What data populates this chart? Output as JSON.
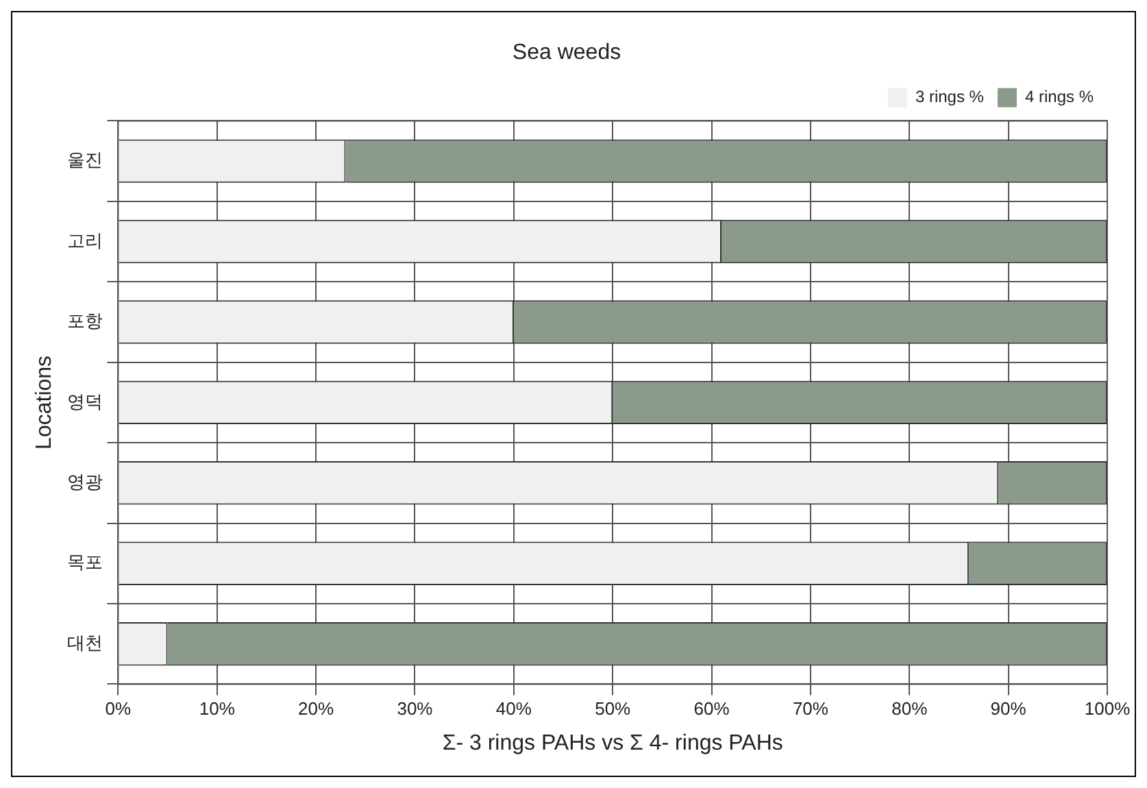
{
  "chart_data": {
    "type": "bar",
    "orientation": "horizontal",
    "stacked": true,
    "title": "Sea weeds",
    "xlabel": "Σ- 3 rings PAHs vs Σ 4- rings PAHs",
    "ylabel": "Locations",
    "categories": [
      "울진",
      "고리",
      "포항",
      "영덕",
      "영광",
      "목포",
      "대천"
    ],
    "series": [
      {
        "name": "3 rings %",
        "color": "#f0f0f0",
        "values": [
          23,
          61,
          40,
          50,
          89,
          86,
          5
        ]
      },
      {
        "name": "4 rings %",
        "color": "#8c9a8c",
        "values": [
          77,
          39,
          60,
          50,
          11,
          14,
          95
        ]
      }
    ],
    "xlim": [
      0,
      100
    ],
    "xticks": [
      {
        "value": 0,
        "label": "0%"
      },
      {
        "value": 10,
        "label": "10%"
      },
      {
        "value": 20,
        "label": "20%"
      },
      {
        "value": 30,
        "label": "30%"
      },
      {
        "value": 40,
        "label": "40%"
      },
      {
        "value": 50,
        "label": "50%"
      },
      {
        "value": 60,
        "label": "60%"
      },
      {
        "value": 70,
        "label": "70%"
      },
      {
        "value": 80,
        "label": "80%"
      },
      {
        "value": 90,
        "label": "90%"
      },
      {
        "value": 100,
        "label": "100%"
      }
    ],
    "grid": true,
    "legend": "top right"
  }
}
